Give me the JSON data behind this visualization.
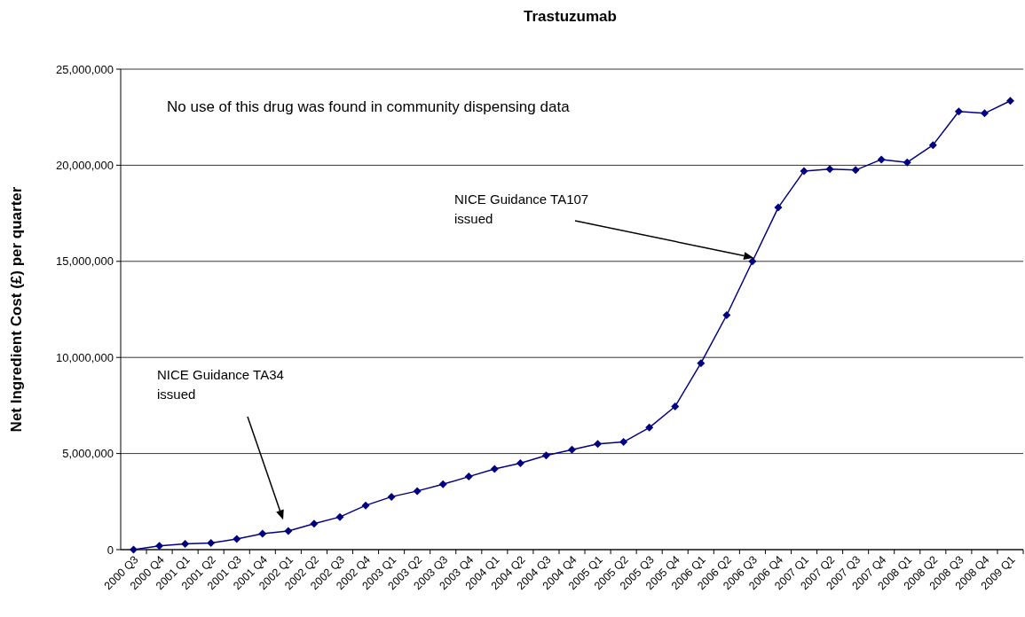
{
  "chart_data": {
    "type": "line",
    "title": "Trastuzumab",
    "ylabel": "Net Ingredient Cost (£) per quarter",
    "categories": [
      "2000 Q3",
      "2000 Q4",
      "2001 Q1",
      "2001 Q2",
      "2001 Q3",
      "2001 Q4",
      "2002 Q1",
      "2002 Q2",
      "2002 Q3",
      "2002 Q4",
      "2003 Q1",
      "2003 Q2",
      "2003 Q3",
      "2003 Q4",
      "2004 Q1",
      "2004 Q2",
      "2004 Q3",
      "2004 Q4",
      "2005 Q1",
      "2005 Q2",
      "2005 Q3",
      "2005 Q4",
      "2006 Q1",
      "2006 Q2",
      "2006 Q3",
      "2006 Q4",
      "2007 Q1",
      "2007 Q2",
      "2007 Q3",
      "2007 Q4",
      "2008 Q1",
      "2008 Q2",
      "2008 Q3",
      "2008 Q4",
      "2009 Q1"
    ],
    "series": [
      {
        "color": "#000080",
        "values": [
          0,
          200000,
          300000,
          350000,
          550000,
          830000,
          970000,
          1350000,
          1700000,
          2300000,
          2750000,
          3050000,
          3400000,
          3800000,
          4200000,
          4500000,
          4900000,
          5200000,
          5500000,
          5600000,
          6350000,
          7450000,
          9700000,
          12200000,
          15000000,
          17800000,
          19700000,
          19800000,
          19750000,
          20300000,
          20150000,
          21050000,
          22800000,
          22700000,
          23350000
        ]
      }
    ],
    "ylim": [
      0,
      25000000
    ],
    "yticks": [
      {
        "value": 0,
        "label": "0"
      },
      {
        "value": 5000000,
        "label": "5,000,000"
      },
      {
        "value": 10000000,
        "label": "10,000,000"
      },
      {
        "value": 15000000,
        "label": "15,000,000"
      },
      {
        "value": 20000000,
        "label": "20,000,000"
      },
      {
        "value": 25000000,
        "label": "25,000,000"
      }
    ],
    "grid": "y",
    "marker": "diamond",
    "line_style": "solid",
    "annotations": [
      "NICE Guidance TA34\nissued",
      "NICE Guidance TA107\nissued",
      "No use of this drug was found in community dispensing data"
    ]
  }
}
